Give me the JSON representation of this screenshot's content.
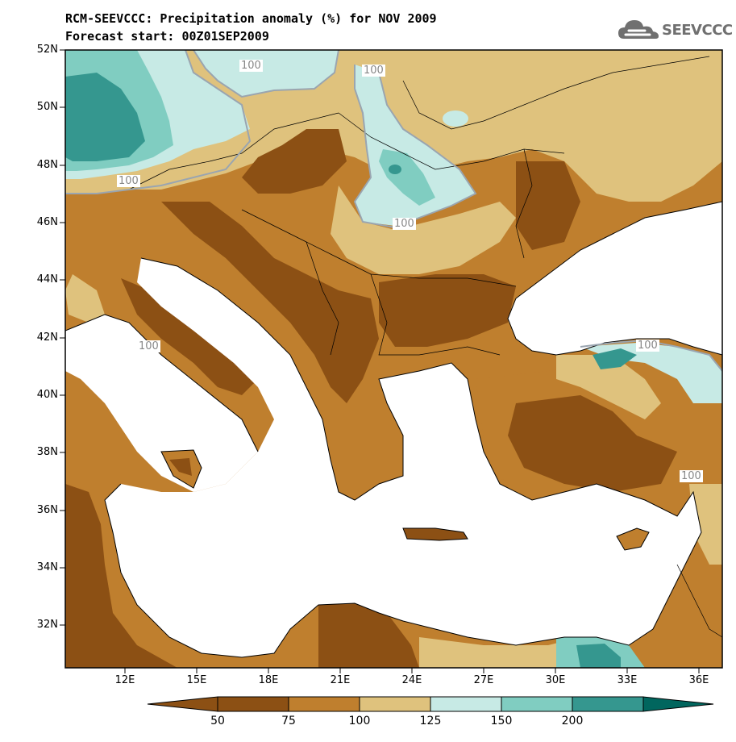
{
  "header": {
    "title_line1": "RCM-SEEVCCC: Precipitation anomaly (%) for NOV 2009",
    "title_line2": "Forecast start: 00Z01SEP2009"
  },
  "logo": {
    "text": "SEEVCCC",
    "icon": "cloud-icon",
    "color": "#707070"
  },
  "axes": {
    "y_ticks": [
      "52N",
      "50N",
      "48N",
      "46N",
      "44N",
      "42N",
      "40N",
      "38N",
      "36N",
      "34N",
      "32N"
    ],
    "x_ticks": [
      "12E",
      "15E",
      "18E",
      "21E",
      "24E",
      "27E",
      "30E",
      "33E",
      "36E"
    ]
  },
  "contour_labels": [
    "100",
    "100",
    "100",
    "100",
    "100",
    "100",
    "100"
  ],
  "colorbar": {
    "bins": [
      {
        "label": "50",
        "color": "#8c5014"
      },
      {
        "label": "75",
        "color": "#bf7f2e"
      },
      {
        "label": "100",
        "color": "#dfc27d"
      },
      {
        "label": "125",
        "color": "#c7eae5"
      },
      {
        "label": "150",
        "color": "#80cdc1"
      },
      {
        "label": "200",
        "color": "#35978f"
      }
    ],
    "end_low_color": "#8c5014",
    "end_high_color": "#01665e"
  },
  "map_colors": {
    "sea": "#ffffff",
    "very_dry": "#8c5014",
    "dry": "#bf7f2e",
    "slightly_dry": "#dfc27d",
    "slightly_wet": "#c7eae5",
    "wet": "#80cdc1",
    "very_wet": "#35978f"
  }
}
